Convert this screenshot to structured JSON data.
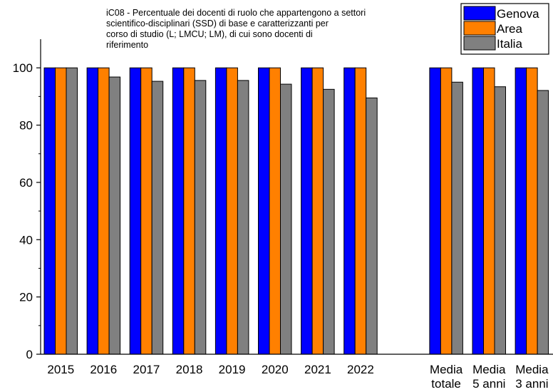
{
  "chart_data": {
    "type": "bar",
    "title_lines": [
      "iC08 - Percentuale dei docenti di ruolo che appartengono a settori",
      "scientifico-disciplinari (SSD) di base e caratterizzanti per",
      "corso di studio (L; LMCU; LM), di cui sono docenti di",
      "riferimento"
    ],
    "categories": [
      [
        "2015"
      ],
      [
        "2016"
      ],
      [
        "2017"
      ],
      [
        "2018"
      ],
      [
        "2019"
      ],
      [
        "2020"
      ],
      [
        "2021"
      ],
      [
        "2022"
      ],
      [],
      [
        "Media",
        "totale"
      ],
      [
        "Media",
        "5 anni"
      ],
      [
        "Media",
        "3 anni"
      ]
    ],
    "series": [
      {
        "name": "Genova",
        "color": "#0000ff",
        "values": [
          100,
          100,
          100,
          100,
          100,
          100,
          100,
          100,
          null,
          100,
          100,
          100
        ]
      },
      {
        "name": "Area",
        "color": "#ff8000",
        "values": [
          100,
          100,
          100,
          100,
          100,
          100,
          100,
          100,
          null,
          100,
          100,
          100
        ]
      },
      {
        "name": "Italia",
        "color": "#808080",
        "values": [
          100,
          96.8,
          95.3,
          95.6,
          95.6,
          94.3,
          92.5,
          89.5,
          null,
          95.0,
          93.4,
          92.1
        ]
      }
    ],
    "yticks": [
      0,
      20,
      40,
      60,
      80,
      100
    ],
    "ylim": [
      0,
      110
    ],
    "legend_position": "top-right",
    "grid": false
  }
}
